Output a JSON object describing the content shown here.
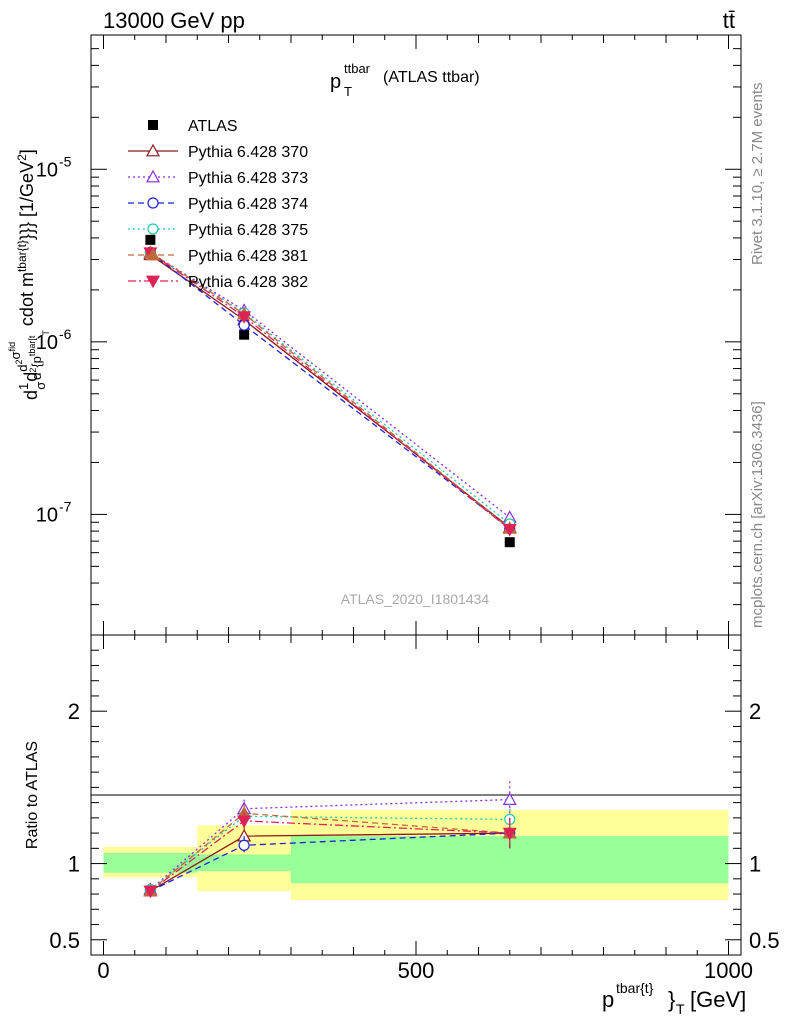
{
  "header": {
    "energy_label": "13000 GeV pp",
    "process_label": "tt̄"
  },
  "side": {
    "rivet": "Rivet 3.1.10, ≥ 2.7M events",
    "mcplots": "mcplots.cern.ch [arXiv:1306.3436]"
  },
  "colors": {
    "ATLAS": "#000000",
    "370": "#8b1a1a",
    "373": "#8a2be2",
    "374": "#1f1fdd",
    "375": "#20c9b0",
    "381": "#c0683a",
    "382": "#dd2255",
    "band_inner": "#99ff99",
    "band_outer": "#ffff99",
    "watermark": "#aaaaaa"
  },
  "chart_data": [
    {
      "type": "line",
      "title_main": "p",
      "title_sup": "ttbar",
      "title_sub": "T",
      "title_suffix": "(ATLAS ttbar)",
      "watermark": "ATLAS_2020_I1801434",
      "ylabel": "d\\frac{1}{\\sigma}d\\frac{d^{2}\\sigma^{\\rm fid}}{d^{2}{p^{\\rm tbar[t]}}_T cdot m^{\\rm tbar[t]}}}} [1/GeV^{2}]",
      "yscale": "log",
      "ylim": [
        2e-08,
        6e-05
      ],
      "y_ticks": [
        "10^{-7}",
        "10^{-6}",
        "10^{-5}"
      ],
      "xlim": [
        -20,
        1020
      ],
      "legend_position": "top-left",
      "x": [
        75,
        225,
        650
      ],
      "series": [
        {
          "name": "ATLAS",
          "values": [
            3.9e-06,
            1.1e-06,
            6.9e-08
          ],
          "style": "data"
        },
        {
          "name": "Pythia 6.428 370",
          "values": [
            3.2e-06,
            1.34e-06,
            8.4e-08
          ],
          "style": "solid",
          "marker": "triangle-open",
          "color_key": "370"
        },
        {
          "name": "Pythia 6.428 373",
          "values": [
            3.28e-06,
            1.52e-06,
            9.6e-08
          ],
          "style": "dotted",
          "marker": "triangle-open",
          "color_key": "373"
        },
        {
          "name": "Pythia 6.428 374",
          "values": [
            3.3e-06,
            1.25e-06,
            8.3e-08
          ],
          "style": "dashed",
          "marker": "circle-open",
          "color_key": "374"
        },
        {
          "name": "Pythia 6.428 375",
          "values": [
            3.28e-06,
            1.47e-06,
            8.8e-08
          ],
          "style": "dotted",
          "marker": "circle-open",
          "color_key": "375"
        },
        {
          "name": "Pythia 6.428 381",
          "values": [
            3.3e-06,
            1.45e-06,
            8.3e-08
          ],
          "style": "dashed",
          "marker": "triangle-filled",
          "color_key": "381"
        },
        {
          "name": "Pythia 6.428 382",
          "values": [
            3.28e-06,
            1.4e-06,
            8.2e-08
          ],
          "style": "dashdot",
          "marker": "triangle-down-filled",
          "color_key": "382"
        }
      ]
    },
    {
      "type": "line",
      "ylabel": "Ratio to ATLAS",
      "xlabel_main": "p",
      "xlabel_sup": "tbar{t}",
      "xlabel_brace": "}",
      "xlabel_sub": "T",
      "xlabel_unit": "[GeV]",
      "xlim": [
        -20,
        1020
      ],
      "ylim": [
        0.4,
        2.5
      ],
      "x_ticks": [
        "0",
        "500",
        "1000"
      ],
      "y_ticks": [
        "0.5",
        "1",
        "2"
      ],
      "bands": [
        {
          "x0": 0,
          "x1": 150,
          "inner": [
            0.94,
            1.07
          ],
          "outer": [
            0.91,
            1.11
          ]
        },
        {
          "x0": 150,
          "x1": 300,
          "inner": [
            0.95,
            1.06
          ],
          "outer": [
            0.82,
            1.25
          ]
        },
        {
          "x0": 300,
          "x1": 1000,
          "inner": [
            0.87,
            1.18
          ],
          "outer": [
            0.76,
            1.35
          ]
        }
      ],
      "x": [
        75,
        225,
        650
      ],
      "series": [
        {
          "name": "Pythia 6.428 370",
          "values": [
            0.82,
            1.18,
            1.2
          ],
          "err": [
            0.03,
            0.06,
            0.1
          ],
          "color_key": "370",
          "style": "solid",
          "marker": "triangle-open"
        },
        {
          "name": "Pythia 6.428 373",
          "values": [
            0.83,
            1.36,
            1.42
          ],
          "err": [
            0.03,
            0.06,
            0.12
          ],
          "color_key": "373",
          "style": "dotted",
          "marker": "triangle-open"
        },
        {
          "name": "Pythia 6.428 374",
          "values": [
            0.82,
            1.12,
            1.2
          ],
          "err": [
            0.03,
            0.06,
            0.1
          ],
          "color_key": "374",
          "style": "dashed",
          "marker": "circle-open"
        },
        {
          "name": "Pythia 6.428 375",
          "values": [
            0.83,
            1.31,
            1.29
          ],
          "err": [
            0.03,
            0.06,
            0.1
          ],
          "color_key": "375",
          "style": "dotted",
          "marker": "circle-open"
        },
        {
          "name": "Pythia 6.428 381",
          "values": [
            0.82,
            1.33,
            1.2
          ],
          "err": [
            0.03,
            0.06,
            0.1
          ],
          "color_key": "381",
          "style": "dashed",
          "marker": "triangle-filled"
        },
        {
          "name": "Pythia 6.428 382",
          "values": [
            0.82,
            1.28,
            1.2
          ],
          "err": [
            0.03,
            0.06,
            0.1
          ],
          "color_key": "382",
          "style": "dashdot",
          "marker": "triangle-down-filled"
        }
      ]
    }
  ]
}
